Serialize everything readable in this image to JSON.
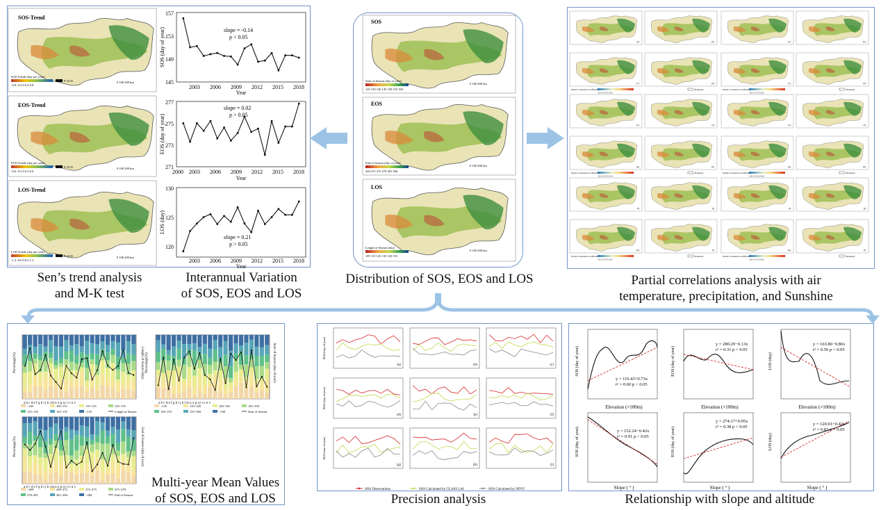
{
  "captions": {
    "sen_line1": "Sen’s trend analysis",
    "sen_line2": "and M-K test",
    "inter_line1": "Interannual Variation",
    "inter_line2": "of SOS, EOS and LOS",
    "dist": "Distribution of SOS, EOS and LOS",
    "partial_line1": "Partial correlations analysis with air",
    "partial_line2": "temperature, precipitation, and Sunshine",
    "multiyear_line1": "Multi-year Mean Values",
    "multiyear_line2": "of SOS, EOS and LOS",
    "precision": "Precision analysis",
    "slope_alt": "Relationship with slope and altitude"
  },
  "trend_maps": {
    "sos_title": "SOS-Trend",
    "eos_title": "EOS-Trend",
    "los_title": "LOS-Trend",
    "sos_legend": "SOS Trends (day per year)",
    "eos_legend": "EOS Trends (day per year)",
    "los_legend": "LOS Trends (day per year)",
    "sos_ticks": "-0.8 -0.4  0  0.4  0.8",
    "eos_ticks": "-0.6 -0.3  0  0.3  0.6",
    "los_ticks": "-1.2 -0.6  0  0.6  1.2",
    "p_sos": "P<0.05",
    "p_eos": "P<0.05",
    "p_los": "P<0.05",
    "scale": "0    100    200 km"
  },
  "interannual": {
    "xlabel": "Year",
    "years": [
      "2003",
      "2006",
      "2009",
      "2012",
      "2015",
      "2018"
    ],
    "sos": {
      "ylabel": "SOS (day of year)",
      "yticks": [
        "157",
        "153",
        "149",
        "145"
      ],
      "slope": "slope = -0.14",
      "p": "p < 0.05"
    },
    "eos": {
      "ylabel": "EOS (day of year)",
      "yticks": [
        "277",
        "275",
        "273",
        "271"
      ],
      "slope": "slope = 0.02",
      "p": "p > 0.05",
      "x0": "2000"
    },
    "los": {
      "ylabel": "LOS (day)",
      "yticks": [
        "130",
        "125",
        "120"
      ],
      "slope": "slope = 0.21",
      "p": "p > 0.05"
    }
  },
  "chart_data": [
    {
      "type": "line",
      "name": "SOS interannual",
      "ylabel": "SOS (day of year)",
      "xlabel": "Year",
      "x": [
        2001,
        2002,
        2003,
        2004,
        2005,
        2006,
        2007,
        2008,
        2009,
        2010,
        2011,
        2012,
        2013,
        2014,
        2015,
        2016,
        2017,
        2018
      ],
      "values": [
        156,
        151,
        151.2,
        149.5,
        149.8,
        150,
        149.5,
        149.4,
        148,
        150.8,
        151.5,
        148.5,
        148.7,
        150,
        147,
        149.6,
        149.6,
        149.2
      ],
      "ylim": [
        145,
        157
      ]
    },
    {
      "type": "line",
      "name": "EOS interannual",
      "ylabel": "EOS (day of year)",
      "xlabel": "Year",
      "x": [
        2001,
        2002,
        2003,
        2004,
        2005,
        2006,
        2007,
        2008,
        2009,
        2010,
        2011,
        2012,
        2013,
        2014,
        2015,
        2016,
        2017,
        2018
      ],
      "values": [
        275,
        273.3,
        275,
        274.3,
        275.2,
        273.6,
        274.6,
        273.4,
        274.1,
        275.6,
        274.2,
        274.5,
        272.1,
        275.2,
        273.2,
        274.7,
        274.7,
        276.8
      ],
      "ylim": [
        271,
        277
      ]
    },
    {
      "type": "line",
      "name": "LOS interannual",
      "ylabel": "LOS (day)",
      "xlabel": "Year",
      "x": [
        2001,
        2002,
        2003,
        2004,
        2005,
        2006,
        2007,
        2008,
        2009,
        2010,
        2011,
        2012,
        2013,
        2014,
        2015,
        2016,
        2017,
        2018
      ],
      "values": [
        119,
        122.5,
        123.8,
        124.9,
        125.4,
        123.7,
        125.1,
        124.1,
        126.6,
        123.8,
        122.3,
        126,
        123.7,
        124.9,
        126.3,
        125.3,
        125.3,
        127.6
      ],
      "ylim": [
        118,
        130
      ]
    }
  ],
  "distribution": {
    "sos_label": "SOS",
    "eos_label": "EOS",
    "los_label": "LOS",
    "sos_legend": "Start of Season (day of year)",
    "sos_ticks": "125 130 140 145 150 155 160",
    "eos_legend": "End of Season (day of year)",
    "eos_ticks": "269 272 275 278 281 284",
    "los_legend": "Length of Season (day)",
    "los_ticks": "105 115 125 135 145 155",
    "scale": "0   100   200 km"
  },
  "partial": {
    "legend": "Partial Correlation Coefficient",
    "boundary": "Boundary",
    "ticks": "-0.6  -0.3  0  0.3  0.6",
    "letters": [
      "(a)",
      "(b)",
      "(c)",
      "(d)",
      "(e)",
      "(f)",
      "(g)",
      "(h)",
      "(i)",
      "(j)",
      "(k)",
      "(l)"
    ]
  },
  "multiyear": {
    "p1_ylabel": "Percentage(%)",
    "p1_y2label": "Length of Season (day)",
    "p2_ylabel": "Percentage(%)",
    "p2_y2label": "Start of Season (day of year)",
    "p3_ylabel": "Percentage(%)",
    "p3_y2label": "End of Season (day of year)",
    "letters": "a b c d e f g h i j k l m n o p q r s t u v",
    "p1_legend": [
      "<105",
      "105~115",
      "115~125",
      "125~135",
      "135~145",
      "145~155",
      ">155",
      "Length of Season"
    ],
    "p2_legend": [
      "<135",
      "135~140",
      "140~145",
      "145~150",
      "150~155",
      "155~160",
      ">160",
      "Start of Season"
    ],
    "p3_legend": [
      "<269",
      "269~272",
      "272~275",
      "275~278",
      "278~281",
      "281~284",
      ">284",
      "End of Season"
    ]
  },
  "precision": {
    "ylabel": "SOS (day of year)",
    "letters": [
      "(a)",
      "(b)",
      "(c)",
      "(d)",
      "(e)",
      "(f)",
      "(g)",
      "(h)",
      "(i)"
    ],
    "legend": [
      "SOS Observations",
      "SOS Calculated by GLASS LAI",
      "SOS Calculated by NDVI"
    ]
  },
  "slope_alt": {
    "top_xlabel": "Elevation (×100m)",
    "bot_xlabel": "Slope ( ° )",
    "sos_ylabel": "SOS (day of year)",
    "eos_ylabel": "EOS (day of year)",
    "los_ylabel": "LOS (day)",
    "eq1": "y = 116.43+0.73x",
    "r1": "r² = 0.60 p < 0.05",
    "eq2": "y = 280.29−0.13x",
    "r2": "r² = 0.31 p < 0.05",
    "eq3": "y = 163.86−0.86x",
    "r3": "r² = 0.56 p < 0.05",
    "eq4": "y = 152.24−0.42x",
    "r4": "r² = 0.91 p < 0.05",
    "eq5": "y = 274.17+0.05x",
    "r5": "r² = 0.38 p < 0.05",
    "eq6": "y = 120.01+0.42x",
    "r6": "r² = 0.82 p < 0.05"
  }
}
